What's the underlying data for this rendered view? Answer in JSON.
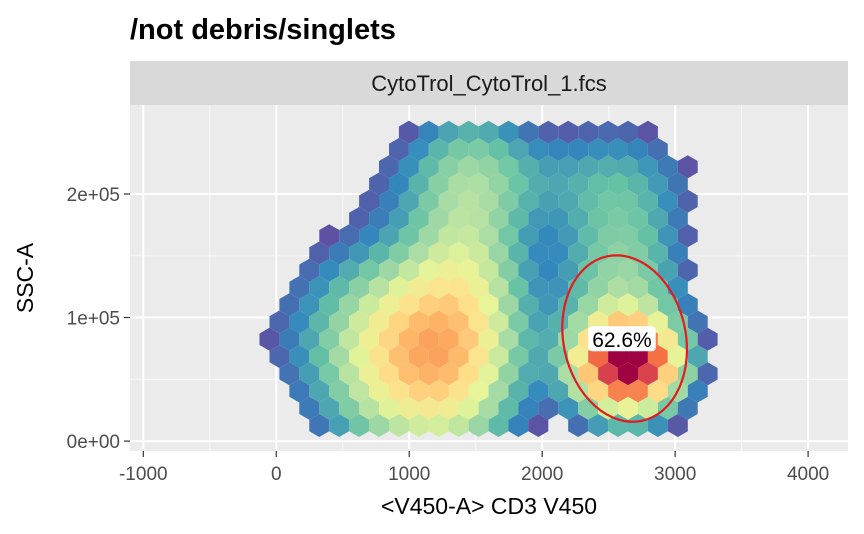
{
  "chart_data": {
    "type": "heatmap",
    "subtype": "hexbin-density",
    "title": "/not debris/singlets",
    "facet_label": "CytoTrol_CytoTrol_1.fcs",
    "xlabel": "<V450-A> CD3 V450",
    "ylabel": "SSC-A",
    "xlim": [
      -1100,
      4300
    ],
    "ylim": [
      -8000,
      272000
    ],
    "x_ticks": [
      -1000,
      0,
      1000,
      2000,
      3000,
      4000
    ],
    "x_tick_labels": [
      "-1000",
      "0",
      "1000",
      "2000",
      "3000",
      "4000"
    ],
    "y_ticks": [
      0,
      100000,
      200000
    ],
    "y_tick_labels": [
      "0e+00",
      "1e+05",
      "2e+05"
    ],
    "grid": true,
    "colormap": [
      "#5E4FA2",
      "#3288BD",
      "#66C2A5",
      "#ABDDA4",
      "#E6F598",
      "#FEE08B",
      "#FDAE61",
      "#F46D43",
      "#D53E4F",
      "#9E0142"
    ],
    "populations": [
      {
        "x": 1050,
        "y": 68000,
        "sx": 430,
        "sy": 52000,
        "w": 0.55
      },
      {
        "x": 1450,
        "y": 140000,
        "sx": 300,
        "sy": 95000,
        "w": 0.28
      },
      {
        "x": 2650,
        "y": 62000,
        "sx": 260,
        "sy": 24000,
        "w": 1.0
      },
      {
        "x": 2600,
        "y": 120000,
        "sx": 330,
        "sy": 70000,
        "w": 0.3
      },
      {
        "x": 1900,
        "y": 215000,
        "sx": 900,
        "sy": 30000,
        "w": 0.12
      },
      {
        "x": 600,
        "y": 90000,
        "sx": 700,
        "sy": 60000,
        "w": 0.1
      }
    ],
    "gate": {
      "type": "ellipse",
      "center": [
        2620,
        83000
      ],
      "semi_axes_data": [
        460,
        68000
      ],
      "rotation_deg": -12,
      "color": "#E41A1C",
      "label": "62.6%",
      "label_position": [
        2600,
        82000
      ]
    }
  }
}
